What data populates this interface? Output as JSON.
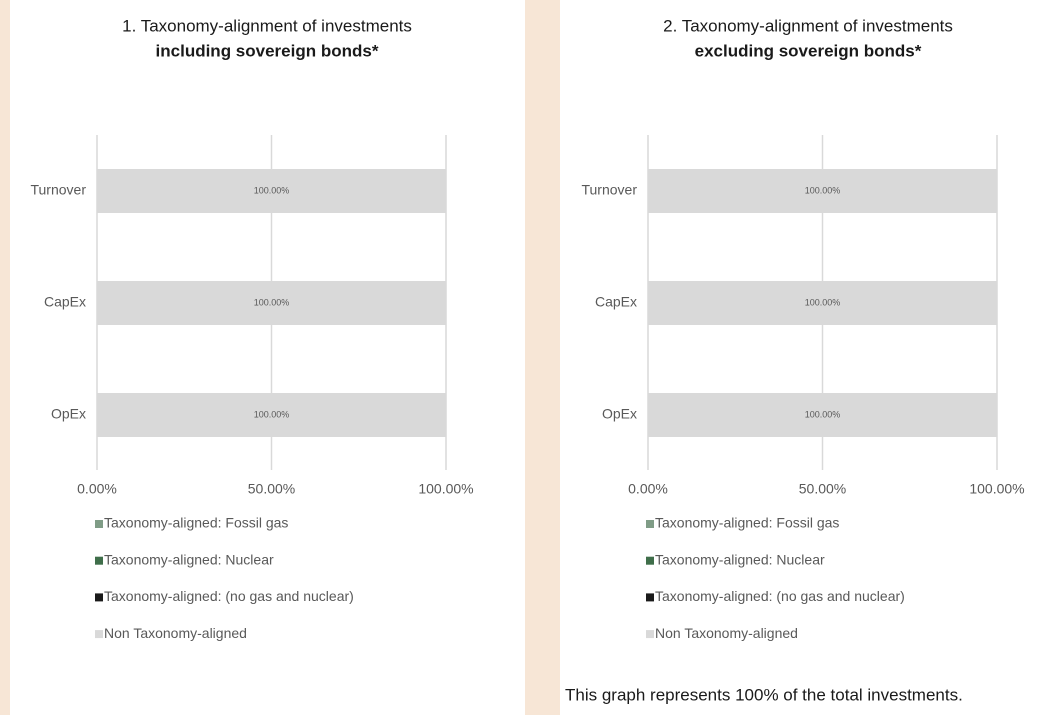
{
  "chart_data": [
    {
      "type": "stacked_barh",
      "title": "1. Taxonomy-alignment of investments",
      "title_bold": "including sovereign bonds*",
      "categories": [
        "Turnover",
        "CapEx",
        "OpEx"
      ],
      "series": [
        {
          "name": "Taxonomy-aligned: Fossil gas",
          "color": "#7f9c86",
          "values": [
            0,
            0,
            0
          ]
        },
        {
          "name": "Taxonomy-aligned: Nuclear",
          "color": "#3f6e4a",
          "values": [
            0,
            0,
            0
          ]
        },
        {
          "name": "Taxonomy-aligned: (no gas and nuclear)",
          "color": "#1a1a1a",
          "values": [
            0,
            0,
            0
          ]
        },
        {
          "name": "Non Taxonomy-aligned",
          "color": "#d9d9d9",
          "values": [
            100,
            100,
            100
          ],
          "value_labels": [
            "100.00%",
            "100.00%",
            "100.00%"
          ]
        }
      ],
      "xlim": [
        0,
        100
      ],
      "xticks": [
        {
          "value": 0,
          "label": "0.00%"
        },
        {
          "value": 50,
          "label": "50.00%"
        },
        {
          "value": 100,
          "label": "100.00%"
        }
      ],
      "grid": true,
      "legend": "bottom"
    },
    {
      "type": "stacked_barh",
      "title": "2. Taxonomy-alignment of investments",
      "title_bold": "excluding sovereign bonds*",
      "categories": [
        "Turnover",
        "CapEx",
        "OpEx"
      ],
      "series": [
        {
          "name": "Taxonomy-aligned: Fossil gas",
          "color": "#7f9c86",
          "values": [
            0,
            0,
            0
          ]
        },
        {
          "name": "Taxonomy-aligned: Nuclear",
          "color": "#3f6e4a",
          "values": [
            0,
            0,
            0
          ]
        },
        {
          "name": "Taxonomy-aligned: (no gas and nuclear)",
          "color": "#1a1a1a",
          "values": [
            0,
            0,
            0
          ]
        },
        {
          "name": "Non Taxonomy-aligned",
          "color": "#d9d9d9",
          "values": [
            100,
            100,
            100
          ],
          "value_labels": [
            "100.00%",
            "100.00%",
            "100.00%"
          ]
        }
      ],
      "xlim": [
        0,
        100
      ],
      "xticks": [
        {
          "value": 0,
          "label": "0.00%"
        },
        {
          "value": 50,
          "label": "50.00%"
        },
        {
          "value": 100,
          "label": "100.00%"
        }
      ],
      "grid": true,
      "legend": "bottom"
    }
  ],
  "note": "This graph represents 100% of the total investments."
}
